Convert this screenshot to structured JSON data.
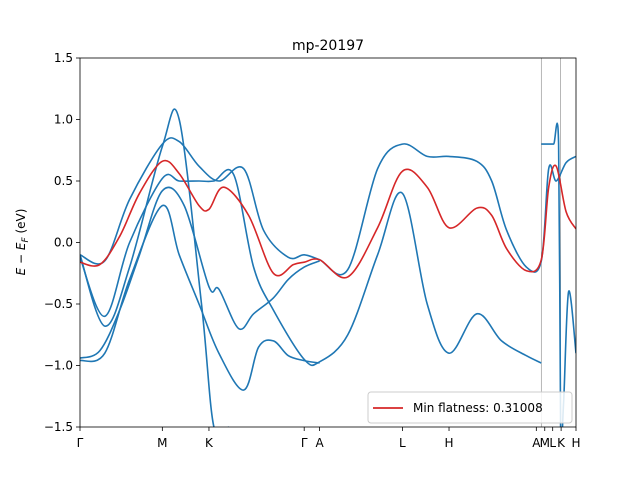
{
  "chart_data": {
    "type": "line",
    "title": "mp-20197",
    "ylabel": "E − E_F (eV)",
    "ylabel_main": "E − E",
    "ylabel_sub": "F",
    "ylabel_unit": " (eV)",
    "xlim": [
      0,
      1
    ],
    "ylim": [
      -1.5,
      1.5
    ],
    "yticks": [
      -1.5,
      -1.0,
      -0.5,
      0.0,
      0.5,
      1.0,
      1.5
    ],
    "ytick_labels": [
      "−1.5",
      "−1.0",
      "−0.5",
      "0.0",
      "0.5",
      "1.0",
      "1.5"
    ],
    "xticks": [
      {
        "label": "Γ",
        "x": 0.0
      },
      {
        "label": "M",
        "x": 0.166
      },
      {
        "label": "K",
        "x": 0.26
      },
      {
        "label": "Γ",
        "x": 0.452
      },
      {
        "label": "A",
        "x": 0.483
      },
      {
        "label": "L",
        "x": 0.65
      },
      {
        "label": "H",
        "x": 0.744
      },
      {
        "label": "A",
        "x": 0.92
      },
      {
        "label": "M",
        "x": 0.937
      },
      {
        "label": "L",
        "x": 0.953
      },
      {
        "label": "K",
        "x": 0.97
      },
      {
        "label": "H",
        "x": 1.0
      }
    ],
    "vertical_lines": [
      0.93,
      0.969
    ],
    "legend": {
      "location": "lower right",
      "entries": [
        {
          "label": "Min flatness: 0.31008",
          "color": "#d62728"
        }
      ]
    },
    "colors": {
      "bands": "#1f77b4",
      "highlight": "#d62728"
    },
    "series": [
      {
        "name": "Min flatness: 0.31008",
        "color": "#d62728",
        "x": [
          0,
          0.04,
          0.08,
          0.12,
          0.166,
          0.2,
          0.24,
          0.26,
          0.29,
          0.34,
          0.39,
          0.43,
          0.452,
          0.483,
          0.54,
          0.6,
          0.65,
          0.7,
          0.744,
          0.8,
          0.83,
          0.86,
          0.9,
          0.93,
          0.945,
          0.96,
          0.98,
          1.0
        ],
        "y": [
          -0.16,
          -0.18,
          0.05,
          0.4,
          0.66,
          0.56,
          0.3,
          0.27,
          0.45,
          0.22,
          -0.25,
          -0.18,
          -0.16,
          -0.14,
          -0.28,
          0.12,
          0.58,
          0.45,
          0.12,
          0.28,
          0.22,
          -0.05,
          -0.23,
          -0.14,
          0.45,
          0.62,
          0.25,
          0.11
        ]
      },
      {
        "name": "",
        "color": "#1f77b4",
        "x": [
          0,
          0.05,
          0.1,
          0.166,
          0.2,
          0.24,
          0.28,
          0.33,
          0.37,
          0.42,
          0.452,
          0.483,
          0.54,
          0.6,
          0.65,
          0.7,
          0.744,
          0.8,
          0.83,
          0.86,
          0.9,
          0.93,
          0.945,
          0.96,
          0.98,
          1.0
        ],
        "y": [
          -0.1,
          -0.15,
          0.35,
          0.8,
          0.82,
          0.62,
          0.5,
          0.6,
          0.1,
          -0.12,
          -0.1,
          -0.14,
          -0.22,
          0.6,
          0.8,
          0.7,
          0.7,
          0.66,
          0.5,
          0.1,
          -0.2,
          -0.15,
          0.6,
          0.5,
          0.65,
          0.7
        ]
      },
      {
        "name": "",
        "color": "#1f77b4",
        "x": [
          0,
          0.05,
          0.1,
          0.166,
          0.2,
          0.24,
          0.27,
          0.31,
          0.35,
          0.39,
          0.452,
          0.483,
          0.54,
          0.6,
          0.65,
          0.7,
          0.744,
          0.8,
          0.85,
          0.9,
          0.93
        ],
        "y": [
          -0.12,
          -0.6,
          0.0,
          0.52,
          0.5,
          0.5,
          0.5,
          0.55,
          -0.2,
          -0.55,
          -0.95,
          -0.97,
          -0.75,
          -0.1,
          0.4,
          -0.5,
          -0.9,
          -0.58,
          -0.8,
          -0.92,
          -0.98
        ]
      },
      {
        "name": "",
        "color": "#1f77b4",
        "x": [
          0,
          0.05,
          0.1,
          0.166,
          0.2,
          0.24,
          0.28,
          0.33,
          0.36,
          0.39,
          0.42,
          0.452,
          0.483
        ],
        "y": [
          -0.96,
          -0.9,
          -0.3,
          0.3,
          -0.1,
          -0.5,
          -0.9,
          -1.2,
          -0.85,
          -0.8,
          -0.92,
          -0.96,
          -0.98
        ]
      },
      {
        "name": "",
        "color": "#1f77b4",
        "x": [
          0,
          0.04,
          0.08,
          0.12,
          0.166,
          0.21,
          0.26,
          0.28,
          0.32,
          0.35,
          0.39,
          0.42,
          0.452,
          0.483
        ],
        "y": [
          -0.94,
          -0.88,
          -0.55,
          -0.1,
          0.42,
          0.3,
          -0.36,
          -0.38,
          -0.7,
          -0.58,
          -0.45,
          -0.3,
          -0.2,
          -0.15
        ]
      },
      {
        "name": "",
        "color": "#1f77b4",
        "x": [
          0,
          0.05,
          0.1,
          0.166,
          0.2,
          0.245,
          0.27,
          0.3
        ],
        "y": [
          -0.1,
          -0.68,
          -0.2,
          0.78,
          1.0,
          -0.5,
          -1.5,
          -1.5
        ]
      },
      {
        "name": "",
        "color": "#1f77b4",
        "x": [
          0.93,
          0.935,
          0.945,
          0.955,
          0.965,
          0.969,
          0.975,
          0.985,
          1.0
        ],
        "y": [
          0.8,
          0.8,
          0.8,
          0.8,
          0.8,
          -1.5,
          -1.3,
          -0.4,
          -0.9
        ]
      }
    ]
  }
}
